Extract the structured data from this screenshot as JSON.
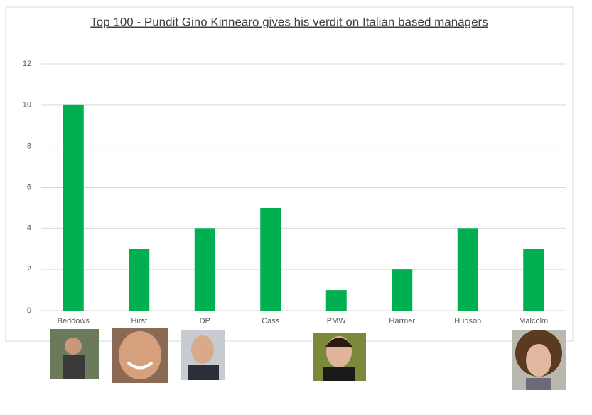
{
  "chart_data": {
    "type": "bar",
    "title": "Top 100 - Pundit Gino Kinnearo gives his verdit on Italian based managers",
    "categories": [
      "Beddows",
      "Hirst",
      "DP",
      "Cass",
      "PMW",
      "Harmer",
      "Hudson",
      "Malcolm"
    ],
    "values": [
      10,
      3,
      4,
      5,
      1,
      2,
      4,
      3
    ],
    "color": "#00b050",
    "ylim": [
      0,
      12
    ],
    "yticks": [
      0,
      2,
      4,
      6,
      8,
      10,
      12
    ],
    "grid": true
  }
}
